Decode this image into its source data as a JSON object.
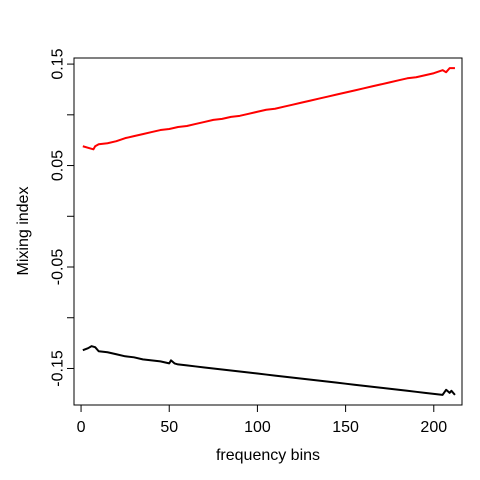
{
  "chart_data": {
    "type": "line",
    "xlabel": "frequency bins",
    "ylabel": "Mixing index",
    "xlim": [
      -4,
      216
    ],
    "ylim": [
      -0.186,
      0.156
    ],
    "x_ticks": [
      0,
      50,
      100,
      150,
      200
    ],
    "x_tick_labels": [
      "0",
      "50",
      "100",
      "150",
      "200"
    ],
    "y_ticks": [
      -0.15,
      -0.1,
      -0.05,
      0,
      0.05,
      0.1,
      0.15
    ],
    "y_tick_labels": [
      "-0.15",
      "",
      "-0.05",
      "",
      "0.05",
      "",
      "0.15"
    ],
    "grid": false,
    "legend": "none",
    "series": [
      {
        "color": "#ff0000",
        "points": [
          [
            1,
            0.069
          ],
          [
            5,
            0.067
          ],
          [
            7,
            0.066
          ],
          [
            8,
            0.069
          ],
          [
            10,
            0.071
          ],
          [
            15,
            0.072
          ],
          [
            20,
            0.074
          ],
          [
            25,
            0.077
          ],
          [
            30,
            0.079
          ],
          [
            35,
            0.081
          ],
          [
            40,
            0.083
          ],
          [
            45,
            0.085
          ],
          [
            50,
            0.086
          ],
          [
            55,
            0.088
          ],
          [
            60,
            0.089
          ],
          [
            65,
            0.091
          ],
          [
            70,
            0.093
          ],
          [
            75,
            0.095
          ],
          [
            80,
            0.096
          ],
          [
            85,
            0.098
          ],
          [
            90,
            0.099
          ],
          [
            95,
            0.101
          ],
          [
            100,
            0.103
          ],
          [
            105,
            0.105
          ],
          [
            110,
            0.106
          ],
          [
            115,
            0.108
          ],
          [
            120,
            0.11
          ],
          [
            125,
            0.112
          ],
          [
            130,
            0.114
          ],
          [
            135,
            0.116
          ],
          [
            140,
            0.118
          ],
          [
            145,
            0.12
          ],
          [
            150,
            0.122
          ],
          [
            155,
            0.124
          ],
          [
            160,
            0.126
          ],
          [
            165,
            0.128
          ],
          [
            170,
            0.13
          ],
          [
            175,
            0.132
          ],
          [
            180,
            0.134
          ],
          [
            185,
            0.136
          ],
          [
            190,
            0.137
          ],
          [
            195,
            0.139
          ],
          [
            200,
            0.141
          ],
          [
            205,
            0.144
          ],
          [
            207,
            0.142
          ],
          [
            209,
            0.146
          ],
          [
            212,
            0.146
          ]
        ]
      },
      {
        "color": "#000000",
        "points": [
          [
            1,
            -0.132
          ],
          [
            4,
            -0.13
          ],
          [
            6,
            -0.128
          ],
          [
            8,
            -0.129
          ],
          [
            10,
            -0.133
          ],
          [
            15,
            -0.134
          ],
          [
            20,
            -0.136
          ],
          [
            25,
            -0.138
          ],
          [
            30,
            -0.139
          ],
          [
            35,
            -0.141
          ],
          [
            40,
            -0.142
          ],
          [
            45,
            -0.143
          ],
          [
            50,
            -0.145
          ],
          [
            51,
            -0.142
          ],
          [
            53,
            -0.145
          ],
          [
            55,
            -0.146
          ],
          [
            60,
            -0.147
          ],
          [
            65,
            -0.148
          ],
          [
            70,
            -0.149
          ],
          [
            75,
            -0.15
          ],
          [
            80,
            -0.151
          ],
          [
            85,
            -0.152
          ],
          [
            90,
            -0.153
          ],
          [
            95,
            -0.154
          ],
          [
            100,
            -0.155
          ],
          [
            105,
            -0.156
          ],
          [
            110,
            -0.157
          ],
          [
            115,
            -0.158
          ],
          [
            120,
            -0.159
          ],
          [
            125,
            -0.16
          ],
          [
            130,
            -0.161
          ],
          [
            135,
            -0.162
          ],
          [
            140,
            -0.163
          ],
          [
            145,
            -0.164
          ],
          [
            150,
            -0.165
          ],
          [
            155,
            -0.166
          ],
          [
            160,
            -0.167
          ],
          [
            165,
            -0.168
          ],
          [
            170,
            -0.169
          ],
          [
            175,
            -0.17
          ],
          [
            180,
            -0.171
          ],
          [
            185,
            -0.172
          ],
          [
            190,
            -0.173
          ],
          [
            195,
            -0.174
          ],
          [
            200,
            -0.175
          ],
          [
            205,
            -0.176
          ],
          [
            207,
            -0.171
          ],
          [
            209,
            -0.174
          ],
          [
            210,
            -0.172
          ],
          [
            212,
            -0.176
          ]
        ]
      }
    ]
  }
}
